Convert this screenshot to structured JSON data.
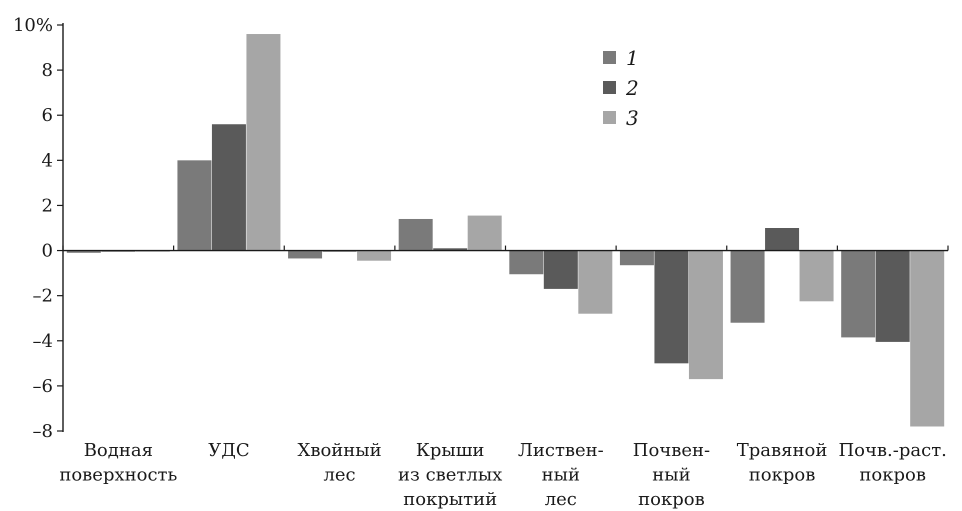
{
  "chart_data": {
    "type": "bar",
    "categories": [
      [
        "Водная",
        "поверхность"
      ],
      [
        "УДС"
      ],
      [
        "Хвойный",
        "лес"
      ],
      [
        "Крыши",
        "из светлых",
        "покрытий"
      ],
      [
        "Листвен-",
        "ный",
        "лес"
      ],
      [
        "Почвен-",
        "ный",
        "покров"
      ],
      [
        "Травяной",
        "покров"
      ],
      [
        "Почв.-раст.",
        "покров"
      ]
    ],
    "series": [
      {
        "name": "1",
        "color": "#7a7a7a",
        "values": [
          -0.1,
          4.0,
          -0.35,
          1.4,
          -1.05,
          -0.65,
          -3.2,
          -3.85
        ]
      },
      {
        "name": "2",
        "color": "#5a5a5a",
        "values": [
          -0.05,
          5.6,
          -0.05,
          0.1,
          -1.7,
          -5.0,
          1.0,
          -4.05
        ]
      },
      {
        "name": "3",
        "color": "#a6a6a6",
        "values": [
          -0.05,
          9.6,
          -0.45,
          1.55,
          -2.8,
          -5.7,
          -2.25,
          -7.8
        ]
      }
    ],
    "ylim": [
      -8,
      10
    ],
    "yticks": [
      10,
      8,
      6,
      4,
      2,
      0,
      -2,
      -4,
      -6,
      -8
    ],
    "ytick_labels": [
      "10%",
      "8",
      "6",
      "4",
      "2",
      "0",
      "–2",
      "–4",
      "–6",
      "–8"
    ],
    "legend_position": "top-center",
    "grid": false,
    "title": "",
    "xlabel": "",
    "ylabel": ""
  }
}
